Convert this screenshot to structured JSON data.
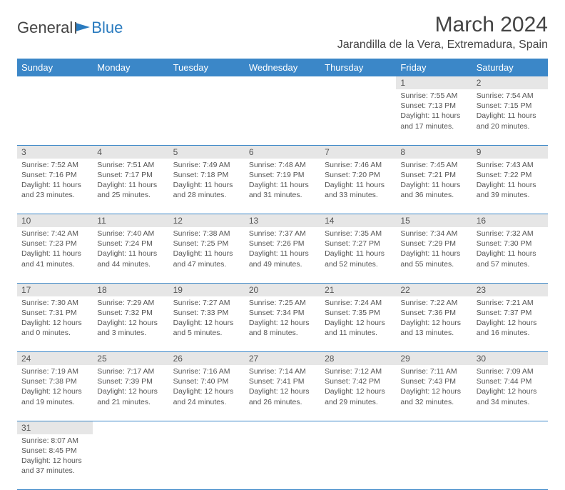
{
  "logo": {
    "part1": "General",
    "part2": "Blue"
  },
  "title": "March 2024",
  "location": "Jarandilla de la Vera, Extremadura, Spain",
  "weekdays": [
    "Sunday",
    "Monday",
    "Tuesday",
    "Wednesday",
    "Thursday",
    "Friday",
    "Saturday"
  ],
  "colors": {
    "header_bg": "#3b87c8",
    "header_text": "#ffffff",
    "daynum_bg": "#e6e6e6",
    "border": "#3b87c8",
    "logo_accent": "#2a7bbf",
    "text": "#555555"
  },
  "typography": {
    "title_fontsize": 30,
    "location_fontsize": 16,
    "weekday_fontsize": 13,
    "daynum_fontsize": 12,
    "body_fontsize": 10.5
  },
  "weeks": [
    [
      null,
      null,
      null,
      null,
      null,
      {
        "n": "1",
        "sr": "Sunrise: 7:55 AM",
        "ss": "Sunset: 7:13 PM",
        "d1": "Daylight: 11 hours",
        "d2": "and 17 minutes."
      },
      {
        "n": "2",
        "sr": "Sunrise: 7:54 AM",
        "ss": "Sunset: 7:15 PM",
        "d1": "Daylight: 11 hours",
        "d2": "and 20 minutes."
      }
    ],
    [
      {
        "n": "3",
        "sr": "Sunrise: 7:52 AM",
        "ss": "Sunset: 7:16 PM",
        "d1": "Daylight: 11 hours",
        "d2": "and 23 minutes."
      },
      {
        "n": "4",
        "sr": "Sunrise: 7:51 AM",
        "ss": "Sunset: 7:17 PM",
        "d1": "Daylight: 11 hours",
        "d2": "and 25 minutes."
      },
      {
        "n": "5",
        "sr": "Sunrise: 7:49 AM",
        "ss": "Sunset: 7:18 PM",
        "d1": "Daylight: 11 hours",
        "d2": "and 28 minutes."
      },
      {
        "n": "6",
        "sr": "Sunrise: 7:48 AM",
        "ss": "Sunset: 7:19 PM",
        "d1": "Daylight: 11 hours",
        "d2": "and 31 minutes."
      },
      {
        "n": "7",
        "sr": "Sunrise: 7:46 AM",
        "ss": "Sunset: 7:20 PM",
        "d1": "Daylight: 11 hours",
        "d2": "and 33 minutes."
      },
      {
        "n": "8",
        "sr": "Sunrise: 7:45 AM",
        "ss": "Sunset: 7:21 PM",
        "d1": "Daylight: 11 hours",
        "d2": "and 36 minutes."
      },
      {
        "n": "9",
        "sr": "Sunrise: 7:43 AM",
        "ss": "Sunset: 7:22 PM",
        "d1": "Daylight: 11 hours",
        "d2": "and 39 minutes."
      }
    ],
    [
      {
        "n": "10",
        "sr": "Sunrise: 7:42 AM",
        "ss": "Sunset: 7:23 PM",
        "d1": "Daylight: 11 hours",
        "d2": "and 41 minutes."
      },
      {
        "n": "11",
        "sr": "Sunrise: 7:40 AM",
        "ss": "Sunset: 7:24 PM",
        "d1": "Daylight: 11 hours",
        "d2": "and 44 minutes."
      },
      {
        "n": "12",
        "sr": "Sunrise: 7:38 AM",
        "ss": "Sunset: 7:25 PM",
        "d1": "Daylight: 11 hours",
        "d2": "and 47 minutes."
      },
      {
        "n": "13",
        "sr": "Sunrise: 7:37 AM",
        "ss": "Sunset: 7:26 PM",
        "d1": "Daylight: 11 hours",
        "d2": "and 49 minutes."
      },
      {
        "n": "14",
        "sr": "Sunrise: 7:35 AM",
        "ss": "Sunset: 7:27 PM",
        "d1": "Daylight: 11 hours",
        "d2": "and 52 minutes."
      },
      {
        "n": "15",
        "sr": "Sunrise: 7:34 AM",
        "ss": "Sunset: 7:29 PM",
        "d1": "Daylight: 11 hours",
        "d2": "and 55 minutes."
      },
      {
        "n": "16",
        "sr": "Sunrise: 7:32 AM",
        "ss": "Sunset: 7:30 PM",
        "d1": "Daylight: 11 hours",
        "d2": "and 57 minutes."
      }
    ],
    [
      {
        "n": "17",
        "sr": "Sunrise: 7:30 AM",
        "ss": "Sunset: 7:31 PM",
        "d1": "Daylight: 12 hours",
        "d2": "and 0 minutes."
      },
      {
        "n": "18",
        "sr": "Sunrise: 7:29 AM",
        "ss": "Sunset: 7:32 PM",
        "d1": "Daylight: 12 hours",
        "d2": "and 3 minutes."
      },
      {
        "n": "19",
        "sr": "Sunrise: 7:27 AM",
        "ss": "Sunset: 7:33 PM",
        "d1": "Daylight: 12 hours",
        "d2": "and 5 minutes."
      },
      {
        "n": "20",
        "sr": "Sunrise: 7:25 AM",
        "ss": "Sunset: 7:34 PM",
        "d1": "Daylight: 12 hours",
        "d2": "and 8 minutes."
      },
      {
        "n": "21",
        "sr": "Sunrise: 7:24 AM",
        "ss": "Sunset: 7:35 PM",
        "d1": "Daylight: 12 hours",
        "d2": "and 11 minutes."
      },
      {
        "n": "22",
        "sr": "Sunrise: 7:22 AM",
        "ss": "Sunset: 7:36 PM",
        "d1": "Daylight: 12 hours",
        "d2": "and 13 minutes."
      },
      {
        "n": "23",
        "sr": "Sunrise: 7:21 AM",
        "ss": "Sunset: 7:37 PM",
        "d1": "Daylight: 12 hours",
        "d2": "and 16 minutes."
      }
    ],
    [
      {
        "n": "24",
        "sr": "Sunrise: 7:19 AM",
        "ss": "Sunset: 7:38 PM",
        "d1": "Daylight: 12 hours",
        "d2": "and 19 minutes."
      },
      {
        "n": "25",
        "sr": "Sunrise: 7:17 AM",
        "ss": "Sunset: 7:39 PM",
        "d1": "Daylight: 12 hours",
        "d2": "and 21 minutes."
      },
      {
        "n": "26",
        "sr": "Sunrise: 7:16 AM",
        "ss": "Sunset: 7:40 PM",
        "d1": "Daylight: 12 hours",
        "d2": "and 24 minutes."
      },
      {
        "n": "27",
        "sr": "Sunrise: 7:14 AM",
        "ss": "Sunset: 7:41 PM",
        "d1": "Daylight: 12 hours",
        "d2": "and 26 minutes."
      },
      {
        "n": "28",
        "sr": "Sunrise: 7:12 AM",
        "ss": "Sunset: 7:42 PM",
        "d1": "Daylight: 12 hours",
        "d2": "and 29 minutes."
      },
      {
        "n": "29",
        "sr": "Sunrise: 7:11 AM",
        "ss": "Sunset: 7:43 PM",
        "d1": "Daylight: 12 hours",
        "d2": "and 32 minutes."
      },
      {
        "n": "30",
        "sr": "Sunrise: 7:09 AM",
        "ss": "Sunset: 7:44 PM",
        "d1": "Daylight: 12 hours",
        "d2": "and 34 minutes."
      }
    ],
    [
      {
        "n": "31",
        "sr": "Sunrise: 8:07 AM",
        "ss": "Sunset: 8:45 PM",
        "d1": "Daylight: 12 hours",
        "d2": "and 37 minutes."
      },
      null,
      null,
      null,
      null,
      null,
      null
    ]
  ]
}
